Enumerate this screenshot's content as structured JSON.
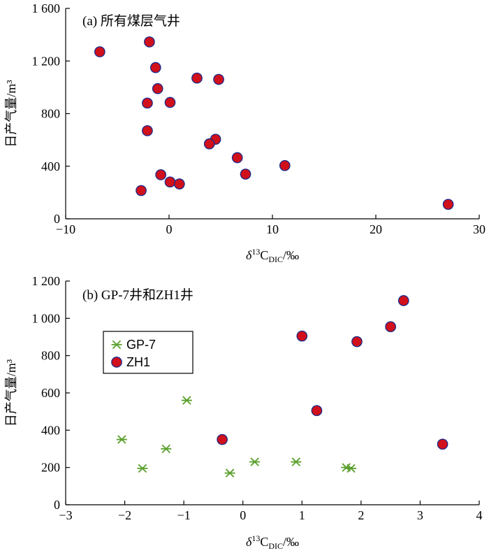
{
  "chart_data": [
    {
      "type": "scatter",
      "title": "(a) 所有煤层气井",
      "xlabel": {
        "prefix": "δ",
        "sup": "13",
        "main": "C",
        "sub": "DIC",
        "suffix": "/‰"
      },
      "ylabel": "日产气量/m³",
      "xlim": [
        -10,
        30
      ],
      "ylim": [
        0,
        1600
      ],
      "xticks": [
        -10,
        0,
        10,
        20,
        30
      ],
      "yticks": [
        0,
        400,
        800,
        1200,
        1600
      ],
      "ytick_labels": [
        "0",
        "400",
        "800",
        "1 200",
        "1 600"
      ],
      "grid": false,
      "series": [
        {
          "marker": "circle",
          "color": "#d0101b",
          "edge": "#1a2a8c",
          "points": [
            [
              -6.7,
              1270
            ],
            [
              -1.9,
              1345
            ],
            [
              -1.3,
              1150
            ],
            [
              -1.1,
              990
            ],
            [
              -2.1,
              880
            ],
            [
              0.1,
              885
            ],
            [
              2.7,
              1070
            ],
            [
              4.8,
              1060
            ],
            [
              -2.1,
              670
            ],
            [
              4.5,
              605
            ],
            [
              3.9,
              570
            ],
            [
              6.6,
              465
            ],
            [
              11.2,
              405
            ],
            [
              7.4,
              340
            ],
            [
              -0.8,
              335
            ],
            [
              0.1,
              280
            ],
            [
              1.0,
              265
            ],
            [
              -2.7,
              215
            ],
            [
              27.0,
              110
            ]
          ]
        }
      ]
    },
    {
      "type": "scatter",
      "title": "(b) GP-7井和ZH1井",
      "xlabel": {
        "prefix": "δ",
        "sup": "13",
        "main": "C",
        "sub": "DIC",
        "suffix": "/‰"
      },
      "ylabel": "日产气量/m³",
      "xlim": [
        -3,
        4
      ],
      "ylim": [
        0,
        1200
      ],
      "xticks": [
        -3,
        -2,
        -1,
        0,
        1,
        2,
        3,
        4
      ],
      "yticks": [
        0,
        200,
        400,
        600,
        800,
        1000,
        1200
      ],
      "ytick_labels": [
        "0",
        "200",
        "400",
        "600",
        "800",
        "1 000",
        "1 200"
      ],
      "grid": false,
      "legend_position": "upper-left",
      "series": [
        {
          "name": "GP-7",
          "marker": "asterisk",
          "color": "#5aa02c",
          "points": [
            [
              -2.05,
              350
            ],
            [
              -1.7,
              195
            ],
            [
              -1.3,
              300
            ],
            [
              -0.95,
              560
            ],
            [
              -0.22,
              170
            ],
            [
              0.2,
              230
            ],
            [
              0.9,
              230
            ],
            [
              1.75,
              200
            ],
            [
              1.83,
              195
            ]
          ]
        },
        {
          "name": "ZH1",
          "marker": "circle",
          "color": "#d0101b",
          "edge": "#1a2a8c",
          "points": [
            [
              -0.35,
              350
            ],
            [
              1.0,
              905
            ],
            [
              1.25,
              505
            ],
            [
              1.93,
              875
            ],
            [
              2.5,
              955
            ],
            [
              2.72,
              1095
            ],
            [
              3.38,
              325
            ]
          ]
        }
      ]
    }
  ]
}
